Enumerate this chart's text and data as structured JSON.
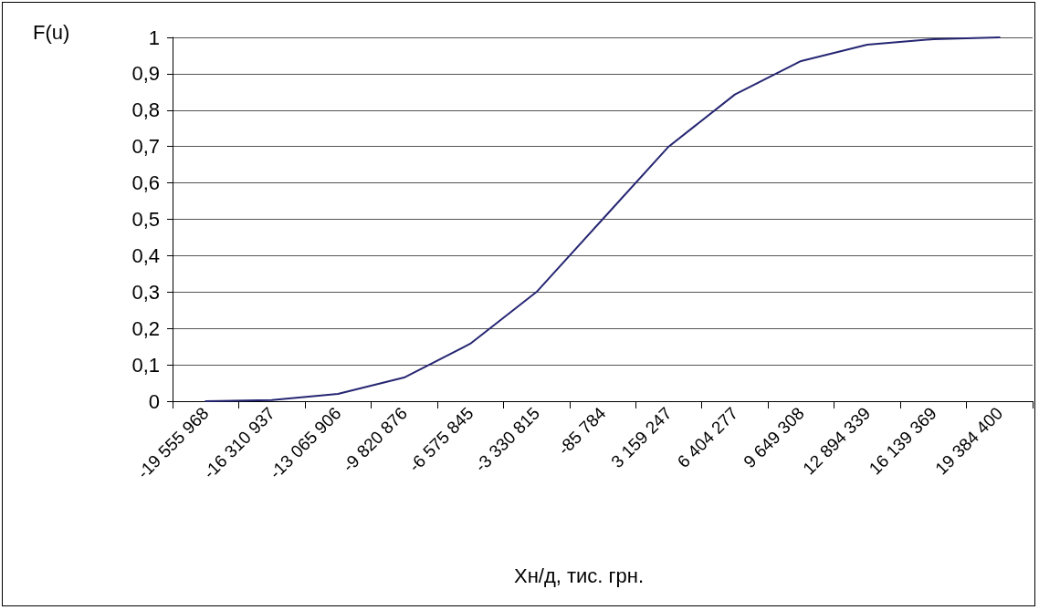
{
  "chart_data": {
    "type": "line",
    "xlabel": "Хн/д, тис. грн.",
    "ylabel": "F(u)",
    "categories": [
      "-19 555 968",
      "-16 310 937",
      "-13 065 906",
      "-9 820 876",
      "-6 575 845",
      "-3 330 815",
      "-85 784",
      "3 159 247",
      "6 404 277",
      "9 649 308",
      "12 894 339",
      "16 139 369",
      "19 384 400"
    ],
    "series": [
      {
        "color": "#262673",
        "values": [
          0,
          0.003,
          0.02,
          0.065,
          0.158,
          0.3,
          0.5,
          0.7,
          0.843,
          0.935,
          0.98,
          0.995,
          1
        ]
      }
    ],
    "ylim": [
      0,
      1
    ],
    "yticks": [
      0,
      {
        "value": 0.1,
        "label": "0,1"
      },
      {
        "value": 0.2,
        "label": "0,2"
      },
      {
        "value": 0.3,
        "label": "0,3"
      },
      {
        "value": 0.4,
        "label": "0,4"
      },
      {
        "value": 0.5,
        "label": "0,5"
      },
      {
        "value": 0.6,
        "label": "0,6"
      },
      {
        "value": 0.7,
        "label": "0,7"
      },
      {
        "value": 0.8,
        "label": "0,8"
      },
      {
        "value": 0.9,
        "label": "0,9"
      },
      1
    ],
    "grid": "y",
    "marker": "none",
    "line_style": "solid"
  }
}
